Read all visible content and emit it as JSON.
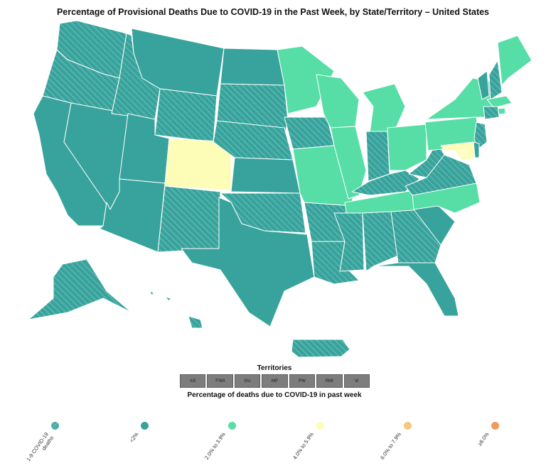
{
  "title": "Percentage of Provisional Deaths Due to COVID-19 in the Past Week, by State/Territory – United States",
  "territories": {
    "title": "Territories",
    "items": [
      "AS",
      "FSM",
      "GU",
      "MP",
      "PW",
      "RMI",
      "VI"
    ]
  },
  "legend": {
    "title": "Percentage of deaths due to COVID-19 in past week",
    "items": [
      {
        "label": "1-9 COVID-19\ndeaths",
        "color": "#38a39c",
        "hatched": true
      },
      {
        "label": "<2%",
        "color": "#38a39c",
        "hatched": false
      },
      {
        "label": "2.0% to 3.9%",
        "color": "#57dea6",
        "hatched": false
      },
      {
        "label": "4.0% to 5.9%",
        "color": "#fdfdb8",
        "hatched": false
      },
      {
        "label": "6.0% to 7.9%",
        "color": "#f6c77d",
        "hatched": false
      },
      {
        "label": "≥8.0%",
        "color": "#f19a5a",
        "hatched": false
      }
    ]
  },
  "state_categories": {
    "WA": "hatched",
    "OR": "hatched",
    "ID": "hatched",
    "WY": "hatched",
    "SD": "hatched",
    "NE": "hatched",
    "IA": "hatched",
    "NM": "hatched",
    "OK": "hatched",
    "AR": "hatched",
    "MS": "hatched",
    "AL": "hatched",
    "GA": "hatched",
    "IN": "hatched",
    "KY": "hatched",
    "WV": "hatched",
    "VA": "hatched",
    "NH": "hatched",
    "CT": "hatched",
    "NJ": "hatched",
    "PR": "hatched",
    "HI": "hatched",
    "AK": "hatched",
    "LA": "hatched",
    "CA": "low",
    "NV": "low",
    "UT": "low",
    "AZ": "low",
    "MT": "low",
    "ND": "low",
    "KS": "low",
    "TX": "low",
    "SC": "low",
    "FL": "low",
    "VT": "low",
    "DE": "low",
    "MN": "mid",
    "WI": "mid",
    "MI": "mid",
    "IL": "mid",
    "MO": "mid",
    "OH": "mid",
    "PA": "mid",
    "NY": "mid",
    "ME": "mid",
    "MA": "mid",
    "TN": "mid",
    "NC": "mid",
    "RI": "mid",
    "CO": "high",
    "MD": "high",
    "DC": "high"
  }
}
